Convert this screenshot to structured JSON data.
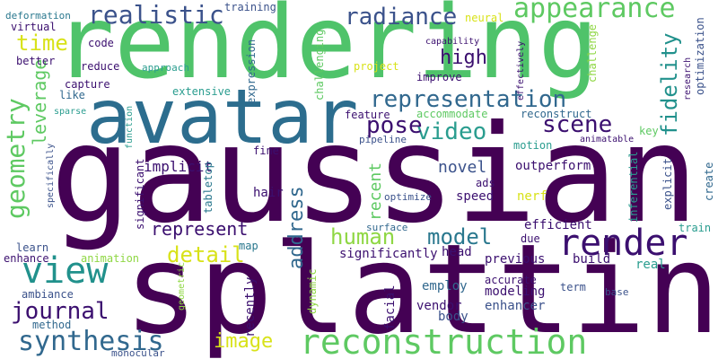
{
  "palette": {
    "deep_purple": "#440154",
    "indigo": "#3b528b",
    "slate_blue": "#31688e",
    "teal": "#21918c",
    "sea_green": "#2a9d8f",
    "green": "#5ec962",
    "light_green": "#8fd744",
    "yellow": "#d8e219"
  },
  "words": [
    {
      "text": "gaussian",
      "color": "#440154"
    },
    {
      "text": "splatting",
      "color": "#440154"
    },
    {
      "text": "rendering",
      "color": "#4fc36a"
    },
    {
      "text": "avatar",
      "color": "#2c6d8e"
    },
    {
      "text": "reconstruction",
      "color": "#5ec962"
    },
    {
      "text": "render",
      "color": "#3b0f6f"
    },
    {
      "text": "view",
      "color": "#21918c"
    },
    {
      "text": "representation",
      "color": "#31688e"
    },
    {
      "text": "appearance",
      "color": "#5ec962"
    },
    {
      "text": "realistic",
      "color": "#3b528b"
    },
    {
      "text": "radiance",
      "color": "#3b528b"
    },
    {
      "text": "geometry",
      "color": "#5ec962"
    },
    {
      "text": "synthesis",
      "color": "#31688e"
    },
    {
      "text": "human",
      "color": "#8fd744"
    },
    {
      "text": "model",
      "color": "#2a788e"
    },
    {
      "text": "detail",
      "color": "#d8e219"
    },
    {
      "text": "video",
      "color": "#2a9d8f"
    },
    {
      "text": "scene",
      "color": "#3b0f6f"
    },
    {
      "text": "pose",
      "color": "#3b0f6f"
    },
    {
      "text": "fidelity",
      "color": "#21918c"
    },
    {
      "text": "journal",
      "color": "#3b0f6f"
    },
    {
      "text": "image",
      "color": "#d8e219"
    },
    {
      "text": "high",
      "color": "#3b0f6f"
    },
    {
      "text": "time",
      "color": "#d8e219"
    },
    {
      "text": "leverage",
      "color": "#5ec962"
    },
    {
      "text": "address",
      "color": "#31688e"
    },
    {
      "text": "represent",
      "color": "#3b0f6f"
    },
    {
      "text": "novel",
      "color": "#3b528b"
    },
    {
      "text": "recent",
      "color": "#5ec962"
    },
    {
      "text": "implicit",
      "color": "#3b0f6f"
    },
    {
      "text": "outperform",
      "color": "#3b0f6f"
    },
    {
      "text": "significantly",
      "color": "#3b0f6f"
    },
    {
      "text": "modeling",
      "color": "#3b0f6f"
    },
    {
      "text": "enhancer",
      "color": "#3b528b"
    },
    {
      "text": "previous",
      "color": "#3b0f6f"
    },
    {
      "text": "efficient",
      "color": "#3b0f6f"
    },
    {
      "text": "employ",
      "color": "#31688e"
    },
    {
      "text": "accurate",
      "color": "#3b0f6f"
    },
    {
      "text": "vendor",
      "color": "#3b0f6f"
    },
    {
      "text": "body",
      "color": "#3b528b"
    },
    {
      "text": "facial",
      "color": "#3b0f6f"
    },
    {
      "text": "dynamic",
      "color": "#8fd744"
    },
    {
      "text": "recently",
      "color": "#3b0f6f"
    },
    {
      "text": "speed",
      "color": "#3b0f6f"
    },
    {
      "text": "ads",
      "color": "#3b0f6f"
    },
    {
      "text": "nerf",
      "color": "#d8e219"
    },
    {
      "text": "due",
      "color": "#3b0f6f"
    },
    {
      "text": "build",
      "color": "#3b0f6f"
    },
    {
      "text": "real",
      "color": "#2a9d8f"
    },
    {
      "text": "head",
      "color": "#3b0f6f"
    },
    {
      "text": "term",
      "color": "#3b528b"
    },
    {
      "text": "base",
      "color": "#3b528b"
    },
    {
      "text": "motion",
      "color": "#2a9d8f"
    },
    {
      "text": "key",
      "color": "#5ec962"
    },
    {
      "text": "animatable",
      "color": "#3b0f6f"
    },
    {
      "text": "inferential",
      "color": "#2a9d8f"
    },
    {
      "text": "explicit",
      "color": "#3b528b"
    },
    {
      "text": "create",
      "color": "#31688e"
    },
    {
      "text": "train",
      "color": "#2a9d8f"
    },
    {
      "text": "map",
      "color": "#2a788e"
    },
    {
      "text": "surface",
      "color": "#31688e"
    },
    {
      "text": "tabletop",
      "color": "#2a788e"
    },
    {
      "text": "hair",
      "color": "#3b0f6f"
    },
    {
      "text": "fine",
      "color": "#3b0f6f"
    },
    {
      "text": "significant",
      "color": "#3b0f6f"
    },
    {
      "text": "optimize",
      "color": "#3b528b"
    },
    {
      "text": "feature",
      "color": "#3b0f6f"
    },
    {
      "text": "accommodate",
      "color": "#5ec962"
    },
    {
      "text": "reconstruct",
      "color": "#31688e"
    },
    {
      "text": "pipeline",
      "color": "#3b528b"
    },
    {
      "text": "extensive",
      "color": "#2a9d8f"
    },
    {
      "text": "expression",
      "color": "#31688e"
    },
    {
      "text": "challenging",
      "color": "#5ec962"
    },
    {
      "text": "improve",
      "color": "#3b0f6f"
    },
    {
      "text": "project",
      "color": "#d8e219"
    },
    {
      "text": "capability",
      "color": "#3b0f6f"
    },
    {
      "text": "approach",
      "color": "#2a9d8f"
    },
    {
      "text": "reduce",
      "color": "#3b0f6f"
    },
    {
      "text": "capture",
      "color": "#3b0f6f"
    },
    {
      "text": "like",
      "color": "#31688e"
    },
    {
      "text": "sparse",
      "color": "#2a9d8f"
    },
    {
      "text": "better",
      "color": "#3b0f6f"
    },
    {
      "text": "code",
      "color": "#3b0f6f"
    },
    {
      "text": "virtual",
      "color": "#3b0f6f"
    },
    {
      "text": "deformation",
      "color": "#2a788e"
    },
    {
      "text": "training",
      "color": "#3b528b"
    },
    {
      "text": "neural",
      "color": "#d8e219"
    },
    {
      "text": "challenge",
      "color": "#8fd744"
    },
    {
      "text": "effectively",
      "color": "#3b0f6f"
    },
    {
      "text": "research",
      "color": "#3b0f6f"
    },
    {
      "text": "optimization",
      "color": "#3b528b"
    },
    {
      "text": "function",
      "color": "#2a9d8f"
    },
    {
      "text": "specifically",
      "color": "#3b528b"
    },
    {
      "text": "learn",
      "color": "#3b528b"
    },
    {
      "text": "enhance",
      "color": "#3b0f6f"
    },
    {
      "text": "animation",
      "color": "#8fd744"
    },
    {
      "text": "ambiance",
      "color": "#3b528b"
    },
    {
      "text": "method",
      "color": "#31688e"
    },
    {
      "text": "geometric",
      "color": "#8fd744"
    },
    {
      "text": "monocular",
      "color": "#3b528b"
    }
  ]
}
